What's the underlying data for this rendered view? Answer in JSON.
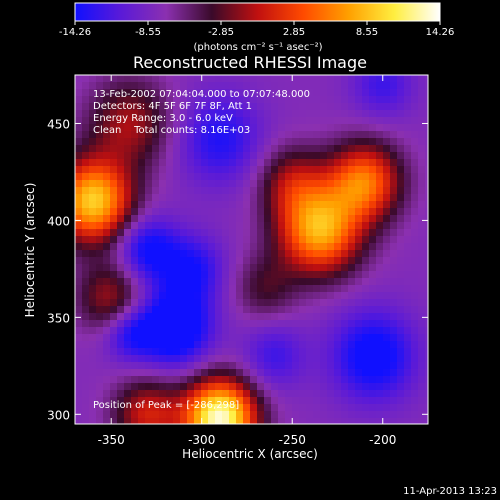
{
  "chart_data": {
    "type": "heatmap",
    "title": "Reconstructed RHESSI Image",
    "xlabel": "Heliocentric X (arcsec)",
    "ylabel": "Heliocentric Y (arcsec)",
    "xlim": [
      -370,
      -175
    ],
    "ylim": [
      295,
      475
    ],
    "xticks": [
      -350,
      -300,
      -250,
      -200
    ],
    "yticks": [
      300,
      350,
      400,
      450
    ],
    "colorbar": {
      "min": -14.26,
      "max": 14.26,
      "ticks": [
        "-14.26",
        "-8.55",
        "-2.85",
        "2.85",
        "8.55",
        "14.26"
      ],
      "unit_label": "(photons cm⁻² s⁻¹ asec⁻²)",
      "colors": [
        "#1010ff",
        "#5a1ad8",
        "#8b30b0",
        "#3a0a2a",
        "#c01010",
        "#ff4a00",
        "#ffa000",
        "#ffee40",
        "#ffffff"
      ]
    },
    "annotations": [
      "13-Feb-2002 07:04:04.000 to 07:07:48.000",
      "Detectors: 4F 5F 6F 7F 8F, Att 1",
      "Energy Range: 3.0 - 6.0 keV",
      "Clean    Total counts: 8.16E+03"
    ],
    "peak_label": "Position of Peak = [-286,298]",
    "sources": [
      {
        "x": -360,
        "y": 410,
        "amp": 1.2,
        "sigma": 15
      },
      {
        "x": -340,
        "y": 450,
        "amp": 0.5,
        "sigma": 16
      },
      {
        "x": -350,
        "y": 360,
        "amp": 0.5,
        "sigma": 13
      },
      {
        "x": -250,
        "y": 420,
        "amp": 0.45,
        "sigma": 13
      },
      {
        "x": -235,
        "y": 395,
        "amp": 1.1,
        "sigma": 16
      },
      {
        "x": -210,
        "y": 420,
        "amp": 0.9,
        "sigma": 14
      },
      {
        "x": -265,
        "y": 365,
        "amp": 0.3,
        "sigma": 12
      },
      {
        "x": -290,
        "y": 298,
        "amp": 1.5,
        "sigma": 14
      },
      {
        "x": -330,
        "y": 300,
        "amp": 0.6,
        "sigma": 13
      },
      {
        "x": -330,
        "y": 385,
        "amp": -0.5,
        "sigma": 12
      },
      {
        "x": -315,
        "y": 345,
        "amp": -0.7,
        "sigma": 14
      },
      {
        "x": -340,
        "y": 342,
        "amp": -0.4,
        "sigma": 10
      },
      {
        "x": -290,
        "y": 442,
        "amp": -0.4,
        "sigma": 16
      },
      {
        "x": -305,
        "y": 375,
        "amp": -0.4,
        "sigma": 12
      },
      {
        "x": -205,
        "y": 330,
        "amp": -0.55,
        "sigma": 16
      },
      {
        "x": -260,
        "y": 330,
        "amp": -0.3,
        "sigma": 12
      },
      {
        "x": -200,
        "y": 470,
        "amp": -0.3,
        "sigma": 12
      }
    ]
  },
  "footer": {
    "timestamp": "11-Apr-2013 13:23"
  }
}
